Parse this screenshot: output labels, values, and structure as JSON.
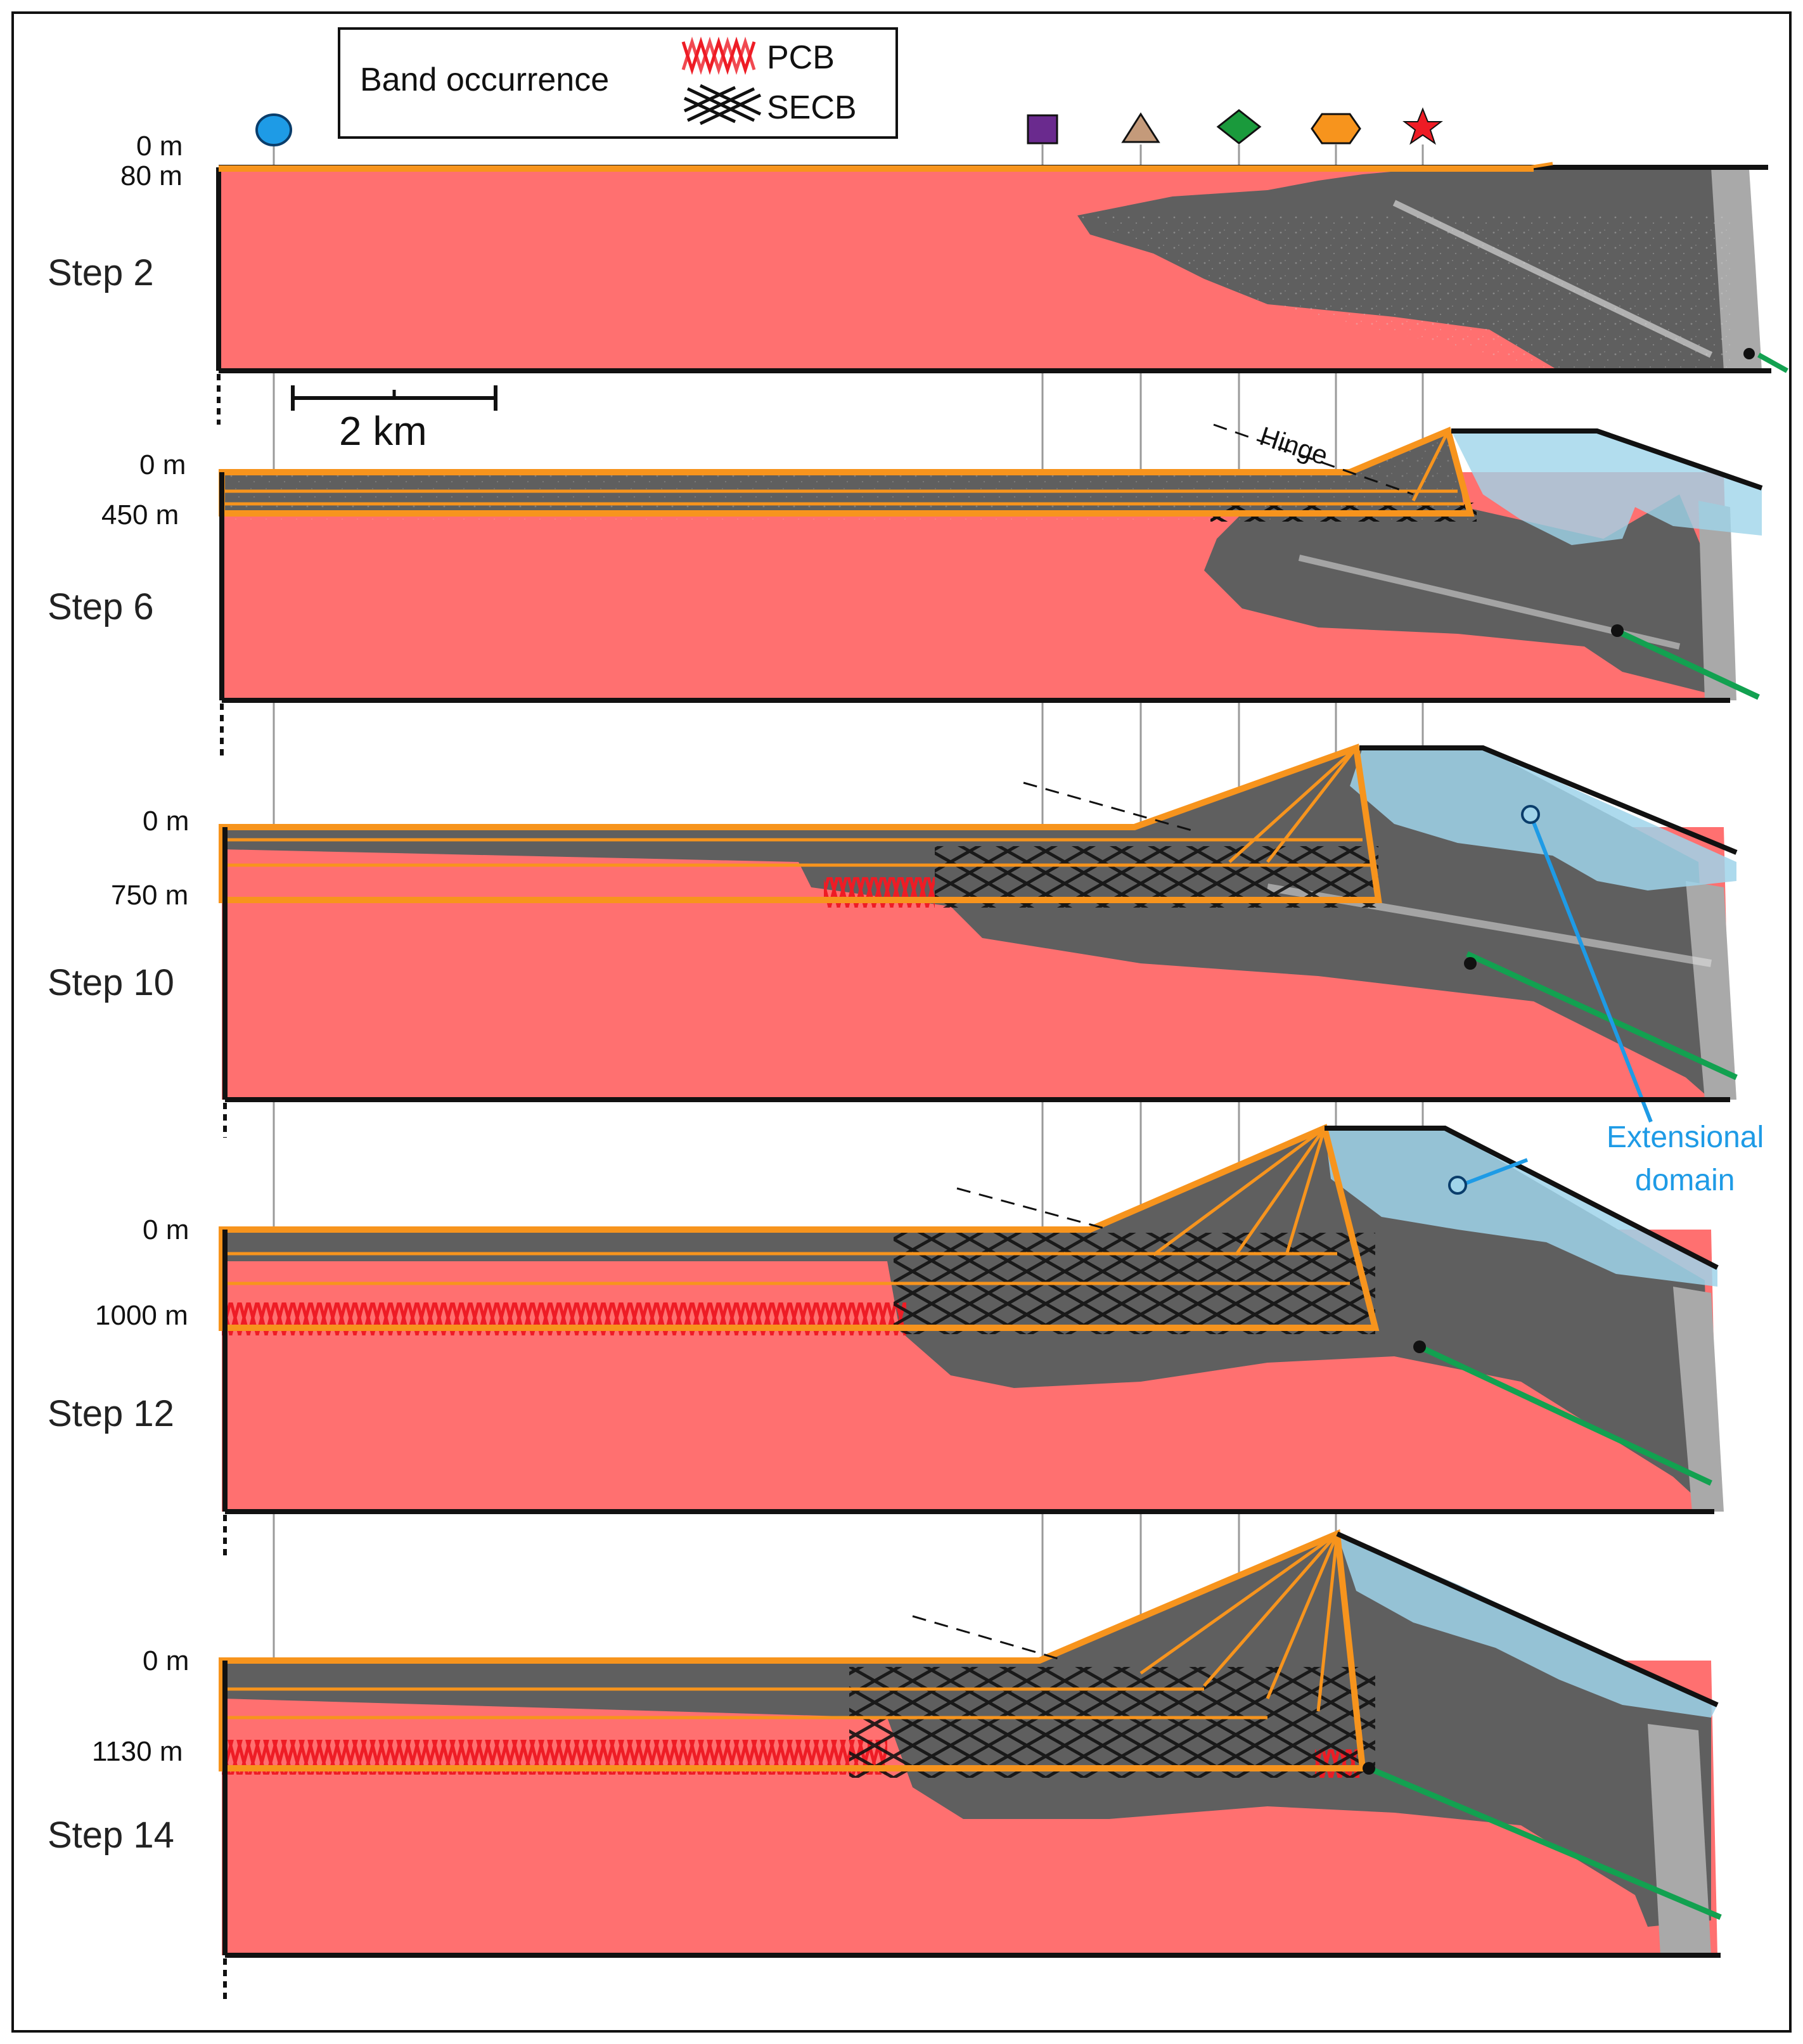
{
  "legend": {
    "title": "Band occurrence",
    "items": [
      {
        "label": "PCB",
        "color": "#ee1c25"
      },
      {
        "label": "SECB",
        "color": "#111111"
      }
    ]
  },
  "markers": [
    {
      "name": "circle-marker",
      "color": "#1e9be6"
    },
    {
      "name": "square-marker",
      "color": "#6a2a8e"
    },
    {
      "name": "triangle-marker",
      "color": "#c49a7a"
    },
    {
      "name": "diamond-marker",
      "color": "#1a9a3c"
    },
    {
      "name": "hexagon-marker",
      "color": "#f7941d"
    },
    {
      "name": "star-marker",
      "color": "#ee1c25"
    }
  ],
  "scale_bar": {
    "label": "2 km"
  },
  "hinge_label": "Hinge",
  "extensional_label": {
    "line1": "Extensional",
    "line2": "domain"
  },
  "steps": [
    {
      "label": "Step 2",
      "top_depth": "0 m",
      "band_depth": "80 m"
    },
    {
      "label": "Step 6",
      "top_depth": "0 m",
      "band_depth": "450 m"
    },
    {
      "label": "Step 10",
      "top_depth": "0 m",
      "band_depth": "750 m"
    },
    {
      "label": "Step 12",
      "top_depth": "0 m",
      "band_depth": "1000 m"
    },
    {
      "label": "Step 14",
      "top_depth": "0 m",
      "band_depth": "1130 m"
    }
  ],
  "colors": {
    "model_red": "#ff7070",
    "damage_gray": "#5f5f5f",
    "layer_orange": "#f7941d",
    "extension_blue": "#9fd4ea",
    "fault_green": "#12a150",
    "frame": "#111111"
  }
}
